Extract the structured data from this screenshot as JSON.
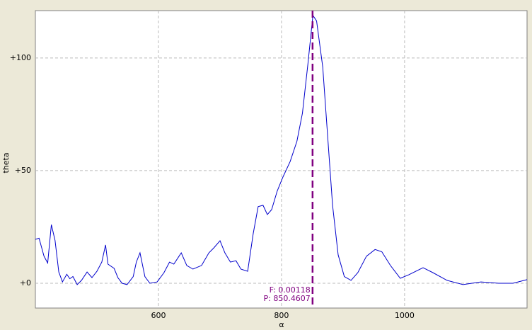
{
  "chart_data": {
    "type": "line",
    "x_label": "α",
    "y_label": "theta",
    "xlim": [
      400,
      1199
    ],
    "ylim": [
      -11,
      121
    ],
    "xticks": [
      600,
      800,
      1000
    ],
    "yticks": [
      {
        "value": 0,
        "label": "+0"
      },
      {
        "value": 50,
        "label": "+50"
      },
      {
        "value": 100,
        "label": "+100"
      }
    ],
    "grid": true,
    "series": [
      {
        "color": "#0000cc",
        "x": [
          400,
          406,
          414,
          420,
          426,
          432,
          438,
          444,
          451,
          456,
          461,
          468,
          475,
          484,
          492,
          500,
          508,
          514,
          518,
          528,
          534,
          541,
          549,
          559,
          564,
          570,
          578,
          586,
          598,
          609,
          618,
          625,
          637,
          646,
          656,
          670,
          682,
          690,
          700,
          708,
          717,
          726,
          734,
          745,
          754,
          762,
          770,
          777,
          784,
          793,
          802,
          814,
          825,
          834,
          843,
          851,
          857,
          867,
          874,
          883,
          892,
          902,
          913,
          924,
          938,
          952,
          963,
          977,
          993,
          1007,
          1030,
          1046,
          1069,
          1095,
          1124,
          1153,
          1176,
          1199
        ],
        "values": [
          19.5,
          20,
          12,
          9,
          26,
          19,
          5,
          0.6,
          4,
          2,
          3,
          -0.6,
          1.3,
          5,
          2.5,
          5.3,
          9.4,
          17,
          8.5,
          6.6,
          2.5,
          0,
          -0.6,
          3,
          9.4,
          13.5,
          3,
          0,
          0.6,
          4.7,
          9.4,
          8.5,
          13.5,
          7.9,
          6.3,
          7.9,
          13.5,
          15.7,
          18.9,
          13.5,
          9.4,
          10,
          6.3,
          5.3,
          22,
          34,
          34.6,
          30.5,
          32.7,
          40.9,
          47,
          54,
          63,
          75.5,
          97.5,
          118.9,
          116.4,
          96,
          69,
          34.6,
          12.6,
          3,
          1.3,
          4.7,
          12,
          15,
          14,
          7.9,
          2.2,
          3.8,
          6.9,
          4.7,
          1.3,
          -0.6,
          0.6,
          0,
          0,
          1.6
        ]
      }
    ],
    "marker": {
      "x": 850.4607,
      "color": "#800080",
      "labels": [
        "F: 0.00118",
        "P: 850.4607"
      ]
    }
  }
}
